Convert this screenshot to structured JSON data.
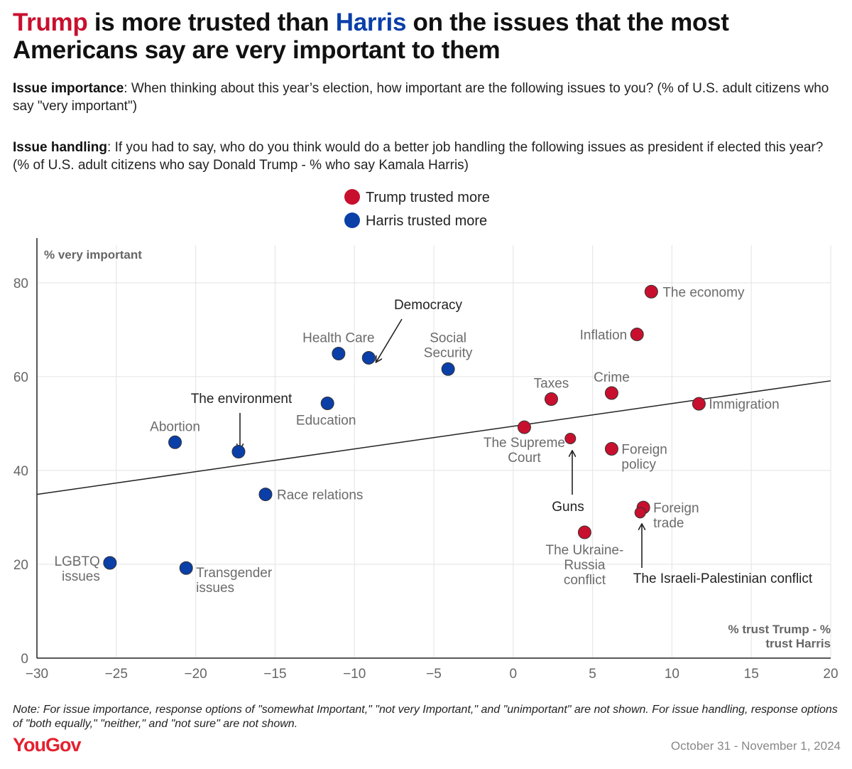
{
  "title": {
    "part1": "Trump",
    "part2": " is more trusted than ",
    "part3": "Harris",
    "part4": " on the issues that the most Americans say are very important to them"
  },
  "questions": {
    "importance_label": "Issue importance",
    "importance_text": ": When thinking about this year’s election, how important are the following issues to you? (% of U.S. adult citizens who say \"very important\")",
    "handling_label": "Issue handling",
    "handling_text": ": If you had to say, who do you think would do a better job handling the following issues as president if elected this year? (% of U.S. adult citizens who say Donald Trump - % who say Kamala Harris)"
  },
  "legend": {
    "trump": "Trump trusted more",
    "harris": "Harris trusted more"
  },
  "colors": {
    "trump": "#c8102e",
    "harris": "#0a3fa8",
    "grid": "#e3e3e3",
    "axis_text": "#666666"
  },
  "chart_data": {
    "type": "scatter",
    "title": "Trump is more trusted than Harris on the issues that the most Americans say are very important to them",
    "xlabel": "% trust Trump - % trust Harris",
    "ylabel": "% very important",
    "xlim": [
      -30,
      20
    ],
    "ylim": [
      0,
      88
    ],
    "xticks": [
      -30,
      -25,
      -20,
      -15,
      -10,
      -5,
      0,
      5,
      10,
      15,
      20
    ],
    "xtick_labels": [
      "−30",
      "−25",
      "−20",
      "−15",
      "−10",
      "−5",
      "0",
      "5",
      "10",
      "15",
      "20"
    ],
    "yticks": [
      0,
      20,
      40,
      60,
      80
    ],
    "grid": true,
    "trendline": {
      "x1": -30,
      "y1": 34.9,
      "x2": 20,
      "y2": 59.1
    },
    "points": [
      {
        "label": "The economy",
        "x": 8.7,
        "y": 78.1,
        "group": "trump"
      },
      {
        "label": "Inflation",
        "x": 7.8,
        "y": 69.0,
        "group": "trump"
      },
      {
        "label": "Crime",
        "x": 6.2,
        "y": 56.5,
        "group": "trump"
      },
      {
        "label": "Taxes",
        "x": 2.4,
        "y": 55.2,
        "group": "trump"
      },
      {
        "label": "Immigration",
        "x": 11.7,
        "y": 54.2,
        "group": "trump"
      },
      {
        "label": "The Supreme Court",
        "x": 0.7,
        "y": 49.2,
        "group": "trump"
      },
      {
        "label": "Guns",
        "x": 3.6,
        "y": 46.8,
        "group": "trump"
      },
      {
        "label": "Foreign policy",
        "x": 6.2,
        "y": 44.6,
        "group": "trump"
      },
      {
        "label": "Foreign trade",
        "x": 8.2,
        "y": 32.1,
        "group": "trump"
      },
      {
        "label": "The Israeli-Palestinian conflict",
        "x": 8.0,
        "y": 31.0,
        "group": "trump"
      },
      {
        "label": "The Ukraine-Russia conflict",
        "x": 4.5,
        "y": 26.8,
        "group": "trump"
      },
      {
        "label": "Health Care",
        "x": -11.0,
        "y": 64.9,
        "group": "harris"
      },
      {
        "label": "Democracy",
        "x": -9.1,
        "y": 64.0,
        "group": "harris"
      },
      {
        "label": "Social Security",
        "x": -4.1,
        "y": 61.6,
        "group": "harris"
      },
      {
        "label": "Education",
        "x": -11.7,
        "y": 54.3,
        "group": "harris"
      },
      {
        "label": "Abortion",
        "x": -21.3,
        "y": 46.0,
        "group": "harris"
      },
      {
        "label": "The environment",
        "x": -17.3,
        "y": 44.0,
        "group": "harris"
      },
      {
        "label": "Race relations",
        "x": -15.6,
        "y": 34.9,
        "group": "harris"
      },
      {
        "label": "LGBTQ issues",
        "x": -25.4,
        "y": 20.3,
        "group": "harris"
      },
      {
        "label": "Transgender issues",
        "x": -20.6,
        "y": 19.2,
        "group": "harris"
      }
    ],
    "annotations": [
      "Democracy",
      "The environment",
      "Guns",
      "The Israeli-Palestinian conflict"
    ]
  },
  "footer": {
    "note": "Note: For issue importance, response options of \"somewhat Important,\" \"not very Important,\" and \"unimportant\" are not shown. For issue handling, response options of \"both equally,\" \"neither,\" and \"not sure\" are not shown.",
    "brand": "YouGov",
    "date": "October 31 - November 1, 2024"
  }
}
